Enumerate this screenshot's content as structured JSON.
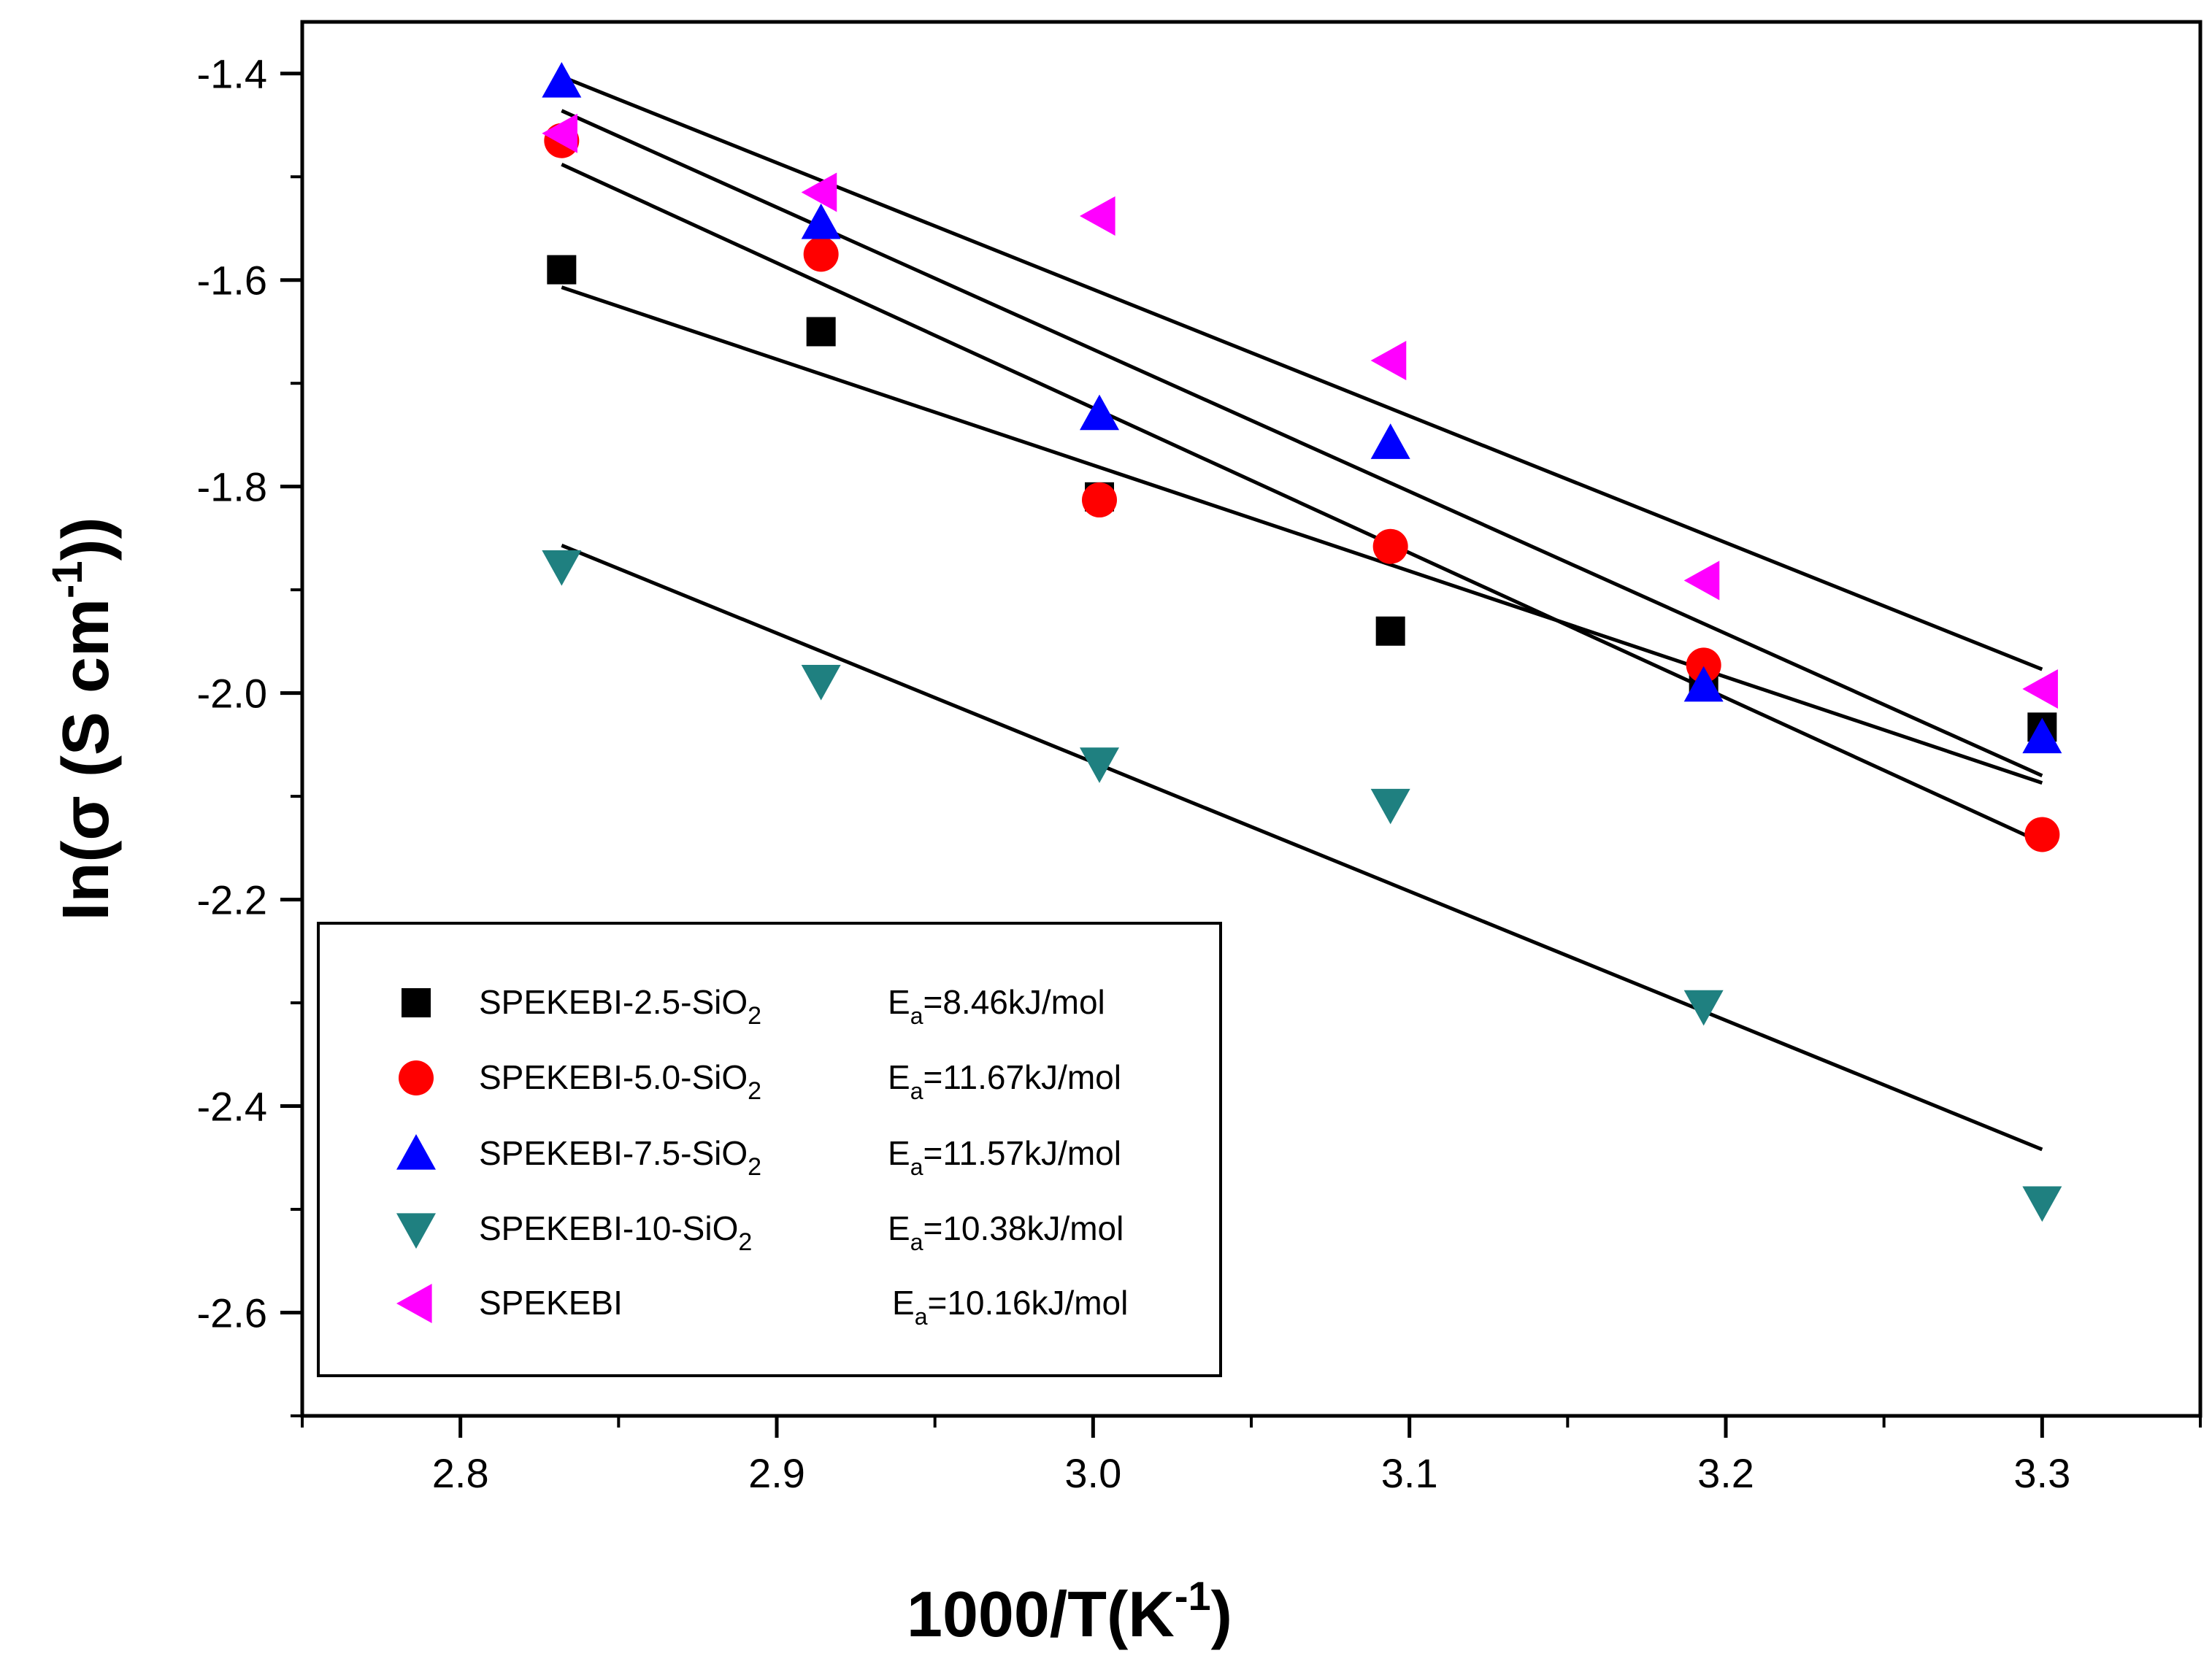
{
  "chart_data": {
    "type": "scatter",
    "title": "",
    "xlabel": "1000/T(K",
    "xlabel_sup": "-1",
    "xlabel_tail": ")",
    "ylabel": "In(σ (S cm",
    "ylabel_sup": "-1",
    "ylabel_tail": "))",
    "xlim": [
      2.75,
      3.35
    ],
    "ylim": [
      -2.7,
      -1.35
    ],
    "xticks": [
      "2.8",
      "2.9",
      "3.0",
      "3.1",
      "3.2",
      "3.3"
    ],
    "yticks": [
      "-1.4",
      "-1.6",
      "-1.8",
      "-2.0",
      "-2.2",
      "-2.4",
      "-2.6"
    ],
    "legend_position": "bottom-left",
    "series": [
      {
        "name": "SPEKEBI-2.5-SiO",
        "subscript": "2",
        "ea_prefix": "E",
        "ea_sub": "a",
        "ea_value": "=8.46kJ/mol",
        "marker": "square",
        "color": "#000000",
        "x": [
          2.832,
          2.914,
          3.002,
          3.094,
          3.193,
          3.3
        ],
        "y": [
          -1.59,
          -1.65,
          -1.81,
          -1.94,
          -1.99,
          -2.033
        ],
        "fit": [
          [
            2.832,
            -1.607
          ],
          [
            3.3,
            -2.087
          ]
        ]
      },
      {
        "name": "SPEKEBI-5.0-SiO",
        "subscript": "2",
        "ea_prefix": "E",
        "ea_sub": "a",
        "ea_value": "=11.67kJ/mol",
        "marker": "circle",
        "color": "#ff0000",
        "x": [
          2.832,
          2.914,
          3.002,
          3.094,
          3.193,
          3.3
        ],
        "y": [
          -1.465,
          -1.575,
          -1.813,
          -1.858,
          -1.973,
          -2.137
        ],
        "fit": [
          [
            2.832,
            -1.488
          ],
          [
            3.3,
            -2.145
          ]
        ]
      },
      {
        "name": "SPEKEBI-7.5-SiO",
        "subscript": "2",
        "ea_prefix": "E",
        "ea_sub": "a",
        "ea_value": "=11.57kJ/mol",
        "marker": "triangle-up",
        "color": "#0000ff",
        "x": [
          2.832,
          2.914,
          3.002,
          3.094,
          3.193,
          3.3
        ],
        "y": [
          -1.408,
          -1.545,
          -1.73,
          -1.758,
          -1.993,
          -2.043
        ],
        "fit": [
          [
            2.832,
            -1.436
          ],
          [
            3.3,
            -2.08
          ]
        ]
      },
      {
        "name": "SPEKEBI-10-SiO",
        "subscript": "2",
        "ea_prefix": "E",
        "ea_sub": "a",
        "ea_value": "=10.38kJ/mol",
        "marker": "triangle-down",
        "color": "#1f8080",
        "x": [
          2.832,
          2.914,
          3.002,
          3.094,
          3.193,
          3.3
        ],
        "y": [
          -1.877,
          -1.988,
          -2.068,
          -2.108,
          -2.303,
          -2.493
        ],
        "fit": [
          [
            2.832,
            -1.857
          ],
          [
            3.3,
            -2.442
          ]
        ]
      },
      {
        "name": "SPEKEBI",
        "subscript": "",
        "ea_prefix": "E",
        "ea_sub": "a",
        "ea_value": "=10.16kJ/mol",
        "marker": "triangle-left",
        "color": "#ff00ff",
        "x": [
          2.832,
          2.914,
          3.002,
          3.094,
          3.193,
          3.3
        ],
        "y": [
          -1.458,
          -1.515,
          -1.538,
          -1.678,
          -1.891,
          -1.996
        ],
        "fit": [
          [
            2.832,
            -1.403
          ],
          [
            3.3,
            -1.977
          ]
        ]
      }
    ]
  }
}
